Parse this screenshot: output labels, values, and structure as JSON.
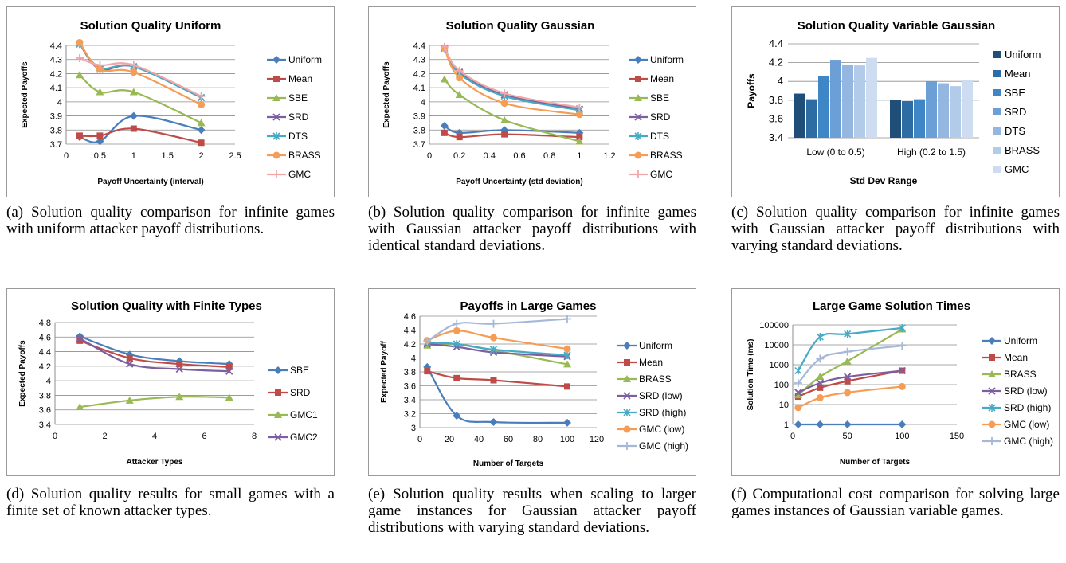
{
  "charts": [
    {
      "type": "line",
      "title": "Solution Quality Uniform",
      "xlabel": "Payoff Uncertainty (interval)",
      "ylabel": "Expected Payoffs",
      "xlim": [
        0,
        2.5
      ],
      "xticks": [
        0,
        0.5,
        1,
        1.5,
        2,
        2.5
      ],
      "xtick_labels": [
        "0",
        "0.5",
        "1",
        "1.5",
        "2",
        "2.5"
      ],
      "ylim": [
        3.7,
        4.4
      ],
      "yticks": [
        3.7,
        3.8,
        3.9,
        4,
        4.1,
        4.2,
        4.3,
        4.4
      ],
      "ytick_labels": [
        "3.7",
        "3.8",
        "3.9",
        "4",
        "4.1",
        "4.2",
        "4.3",
        "4.4"
      ],
      "x": [
        0.2,
        0.5,
        1,
        2
      ],
      "grid": "horizontal",
      "legend": "right",
      "series": [
        {
          "name": "Uniform",
          "values": [
            3.75,
            3.72,
            3.9,
            3.8
          ],
          "color": "#4a7ebb",
          "marker": "diamond"
        },
        {
          "name": "Mean",
          "values": [
            3.76,
            3.76,
            3.81,
            3.71
          ],
          "color": "#be4b48",
          "marker": "square"
        },
        {
          "name": "SBE",
          "values": [
            4.19,
            4.07,
            4.07,
            3.85
          ],
          "color": "#98b954",
          "marker": "triangle"
        },
        {
          "name": "SRD",
          "values": [
            4.41,
            4.23,
            4.25,
            4.03
          ],
          "color": "#7d5fa0",
          "marker": "x"
        },
        {
          "name": "DTS",
          "values": [
            4.41,
            4.24,
            4.25,
            4.03
          ],
          "color": "#46aac5",
          "marker": "star"
        },
        {
          "name": "BRASS",
          "values": [
            4.42,
            4.23,
            4.21,
            3.98
          ],
          "color": "#f59d56",
          "marker": "circle"
        },
        {
          "name": "GMC",
          "values": [
            4.31,
            4.26,
            4.26,
            4.04
          ],
          "color": "#f2a6a6",
          "marker": "plus"
        }
      ]
    },
    {
      "type": "line",
      "title": "Solution Quality Gaussian",
      "xlabel": "Payoff Uncertainty (std deviation)",
      "ylabel": "Expected Payoffs",
      "xlim": [
        0,
        1.2
      ],
      "xticks": [
        0,
        0.2,
        0.4,
        0.6,
        0.8,
        1,
        1.2
      ],
      "xtick_labels": [
        "0",
        "0.2",
        "0.4",
        "0.6",
        "0.8",
        "1",
        "1.2"
      ],
      "ylim": [
        3.7,
        4.4
      ],
      "yticks": [
        3.7,
        3.8,
        3.9,
        4,
        4.1,
        4.2,
        4.3,
        4.4
      ],
      "ytick_labels": [
        "3.7",
        "3.8",
        "3.9",
        "4",
        "4.1",
        "4.2",
        "4.3",
        "4.4"
      ],
      "x": [
        0.1,
        0.2,
        0.5,
        1
      ],
      "grid": "horizontal",
      "legend": "right",
      "series": [
        {
          "name": "Uniform",
          "values": [
            3.83,
            3.78,
            3.8,
            3.78
          ],
          "color": "#4a7ebb",
          "marker": "diamond"
        },
        {
          "name": "Mean",
          "values": [
            3.78,
            3.75,
            3.77,
            3.75
          ],
          "color": "#be4b48",
          "marker": "square"
        },
        {
          "name": "SBE",
          "values": [
            4.16,
            4.05,
            3.87,
            3.72
          ],
          "color": "#98b954",
          "marker": "triangle"
        },
        {
          "name": "SRD",
          "values": [
            4.38,
            4.21,
            4.05,
            3.95
          ],
          "color": "#7d5fa0",
          "marker": "x"
        },
        {
          "name": "DTS",
          "values": [
            4.38,
            4.2,
            4.04,
            3.94
          ],
          "color": "#46aac5",
          "marker": "star"
        },
        {
          "name": "BRASS",
          "values": [
            4.38,
            4.17,
            3.99,
            3.91
          ],
          "color": "#f59d56",
          "marker": "circle"
        },
        {
          "name": "GMC",
          "values": [
            4.39,
            4.22,
            4.06,
            3.96
          ],
          "color": "#f2a6a6",
          "marker": "plus"
        }
      ]
    },
    {
      "type": "bar",
      "title": "Solution Quality Variable Gaussian",
      "xlabel": "Std Dev Range",
      "ylabel": "Payoffs",
      "categories": [
        "Low (0 to 0.5)",
        "High (0.2 to 1.5)"
      ],
      "ylim": [
        3.4,
        4.4
      ],
      "yticks": [
        3.4,
        3.6,
        3.8,
        4,
        4.2,
        4.4
      ],
      "ytick_labels": [
        "3.4",
        "3.6",
        "3.8",
        "4",
        "4.2",
        "4.4"
      ],
      "grid": "horizontal",
      "legend": "right",
      "series": [
        {
          "name": "Uniform",
          "values": [
            3.87,
            3.8
          ],
          "color": "#1f4e79"
        },
        {
          "name": "Mean",
          "values": [
            3.81,
            3.79
          ],
          "color": "#2e6da4"
        },
        {
          "name": "SBE",
          "values": [
            4.06,
            3.81
          ],
          "color": "#3f86c6"
        },
        {
          "name": "SRD",
          "values": [
            4.23,
            4.0
          ],
          "color": "#6b9fd6"
        },
        {
          "name": "DTS",
          "values": [
            4.18,
            3.98
          ],
          "color": "#93b7e0"
        },
        {
          "name": "BRASS",
          "values": [
            4.17,
            3.95
          ],
          "color": "#b2cbe9"
        },
        {
          "name": "GMC",
          "values": [
            4.25,
            4.01
          ],
          "color": "#cddcf0"
        }
      ]
    },
    {
      "type": "line",
      "title": "Solution Quality with Finite Types",
      "xlabel": "Attacker Types",
      "ylabel": "Expected Payoffs",
      "xlim": [
        0,
        8
      ],
      "xticks": [
        0,
        2,
        4,
        6,
        8
      ],
      "xtick_labels": [
        "0",
        "2",
        "4",
        "6",
        "8"
      ],
      "ylim": [
        3.4,
        4.8
      ],
      "yticks": [
        3.4,
        3.6,
        3.8,
        4,
        4.2,
        4.4,
        4.6,
        4.8
      ],
      "ytick_labels": [
        "3.4",
        "3.6",
        "3.8",
        "4",
        "4.2",
        "4.4",
        "4.6",
        "4.8"
      ],
      "x": [
        1,
        3,
        5,
        7
      ],
      "grid": "horizontal",
      "legend": "right",
      "series": [
        {
          "name": "SBE",
          "values": [
            4.61,
            4.36,
            4.27,
            4.23
          ],
          "color": "#4a7ebb",
          "marker": "diamond"
        },
        {
          "name": "SRD",
          "values": [
            4.55,
            4.31,
            4.23,
            4.19
          ],
          "color": "#be4b48",
          "marker": "square"
        },
        {
          "name": "GMC1",
          "values": [
            3.64,
            3.73,
            3.78,
            3.77
          ],
          "color": "#98b954",
          "marker": "triangle"
        },
        {
          "name": "GMC2",
          "values": [
            4.58,
            4.23,
            4.16,
            4.13
          ],
          "color": "#7d5fa0",
          "marker": "x"
        }
      ]
    },
    {
      "type": "line",
      "title": "Payoffs in Large Games",
      "xlabel": "Number of Targets",
      "ylabel": "Expected Payoff",
      "xlim": [
        0,
        120
      ],
      "xticks": [
        0,
        20,
        40,
        60,
        80,
        100,
        120
      ],
      "xtick_labels": [
        "0",
        "20",
        "40",
        "60",
        "80",
        "100",
        "120"
      ],
      "ylim": [
        3,
        4.6
      ],
      "yticks": [
        3,
        3.2,
        3.4,
        3.6,
        3.8,
        4,
        4.2,
        4.4,
        4.6
      ],
      "ytick_labels": [
        "3",
        "3.2",
        "3.4",
        "3.6",
        "3.8",
        "4",
        "4.2",
        "4.4",
        "4.6"
      ],
      "x": [
        5,
        25,
        50,
        100
      ],
      "grid": "horizontal",
      "legend": "right",
      "series": [
        {
          "name": "Uniform",
          "values": [
            3.87,
            3.17,
            3.08,
            3.07
          ],
          "color": "#4a7ebb",
          "marker": "diamond"
        },
        {
          "name": "Mean",
          "values": [
            3.81,
            3.71,
            3.68,
            3.59
          ],
          "color": "#be4b48",
          "marker": "square"
        },
        {
          "name": "BRASS",
          "values": [
            4.18,
            4.2,
            4.11,
            3.91
          ],
          "color": "#98b954",
          "marker": "triangle"
        },
        {
          "name": "SRD (low)",
          "values": [
            4.2,
            4.16,
            4.08,
            4.02
          ],
          "color": "#7d5fa0",
          "marker": "x"
        },
        {
          "name": "SRD (high)",
          "values": [
            4.22,
            4.2,
            4.12,
            4.04
          ],
          "color": "#46aac5",
          "marker": "star"
        },
        {
          "name": "GMC (low)",
          "values": [
            4.25,
            4.39,
            4.29,
            4.13
          ],
          "color": "#f59d56",
          "marker": "circle"
        },
        {
          "name": "GMC (high)",
          "values": [
            4.24,
            4.49,
            4.49,
            4.56
          ],
          "color": "#a5b8d8",
          "marker": "plus"
        }
      ]
    },
    {
      "type": "line",
      "title": "Large Game Solution Times",
      "xlabel": "Number of Targets",
      "ylabel": "Solution Time (ms)",
      "xlim": [
        0,
        150
      ],
      "xticks": [
        0,
        50,
        100,
        150
      ],
      "xtick_labels": [
        "0",
        "50",
        "100",
        "150"
      ],
      "yscale": "log",
      "ylim": [
        1,
        100000
      ],
      "yticks": [
        1,
        10,
        100,
        1000,
        10000,
        100000
      ],
      "ytick_labels": [
        "1",
        "10",
        "100",
        "1000",
        "10000",
        "100000"
      ],
      "x": [
        5,
        25,
        50,
        100
      ],
      "grid": "horizontal",
      "legend": "right",
      "series": [
        {
          "name": "Uniform",
          "values": [
            1,
            1,
            1,
            1
          ],
          "color": "#4a7ebb",
          "marker": "diamond"
        },
        {
          "name": "Mean",
          "values": [
            25,
            70,
            150,
            500
          ],
          "color": "#be4b48",
          "marker": "square"
        },
        {
          "name": "BRASS",
          "values": [
            30,
            250,
            1500,
            60000
          ],
          "color": "#98b954",
          "marker": "triangle"
        },
        {
          "name": "SRD (low)",
          "values": [
            40,
            120,
            250,
            500
          ],
          "color": "#7d5fa0",
          "marker": "x"
        },
        {
          "name": "SRD (high)",
          "values": [
            500,
            25000,
            35000,
            70000
          ],
          "color": "#46aac5",
          "marker": "star"
        },
        {
          "name": "GMC (low)",
          "values": [
            7,
            22,
            40,
            80
          ],
          "color": "#f59d56",
          "marker": "circle"
        },
        {
          "name": "GMC (high)",
          "values": [
            120,
            2000,
            4500,
            9000
          ],
          "color": "#a5b8d8",
          "marker": "plus"
        }
      ]
    }
  ],
  "captions": [
    "(a) Solution quality comparison for infinite games with uniform attacker payoff distributions.",
    "(b) Solution quality comparison for infinite games with Gaussian attacker payoff distributions with identical standard deviations.",
    "(c) Solution quality comparison for infinite games with Gaussian attacker payoff distributions with varying standard deviations.",
    "(d) Solution quality results for small games with a finite set of known attacker types.",
    "(e) Solution quality results when scaling to larger game instances for Gaussian attacker payoff distributions with varying standard deviations.",
    "(f) Computational cost comparison for solving large games instances of Gaussian variable games."
  ]
}
